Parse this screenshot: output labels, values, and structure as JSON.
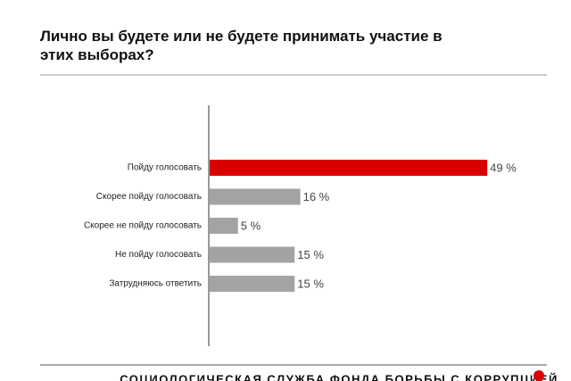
{
  "chart_data": {
    "type": "bar",
    "orientation": "horizontal",
    "title": "Лично вы будете или не будете принимать участие в этих выборах?",
    "categories": [
      "Пойду голосовать",
      "Скорее пойду голосовать",
      "Скорее не пойду голосовать",
      "Не пойду голосовать",
      "Затрудняюсь ответить"
    ],
    "values": [
      49,
      16,
      5,
      15,
      15
    ],
    "value_labels": [
      "49 %",
      "16 %",
      "5 %",
      "15 %",
      "15 %"
    ],
    "colors": [
      "#d90000",
      "#a3a3a3",
      "#a3a3a3",
      "#a3a3a3",
      "#a3a3a3"
    ],
    "source": "СОЦИОЛОГИЧЕСКАЯ СЛУЖБА ФОНДА БОРЬБЫ С КОРРУПЦИЕЙ"
  }
}
